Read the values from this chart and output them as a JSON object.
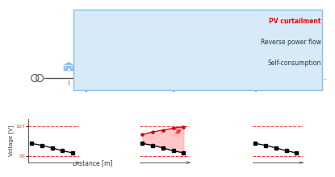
{
  "bg_color": "#ffffff",
  "box_color": "#d6eaf8",
  "box_border_color": "#85c1e9",
  "pv_curtailment_color": "#ff0000",
  "load_color": "#222222",
  "self_consumption_color": "#5b9bd5",
  "reverse_color": "#aaaaaa",
  "voltage_limit_upper": 107,
  "voltage_limit_lower": 95,
  "voltage_limit_color": "#ff3333",
  "arrow_color": "#ff3333",
  "house_color": "#85c1e9",
  "house_solar_color": "#1a3a6b",
  "pole_color": "#777777",
  "line_color": "#555555"
}
